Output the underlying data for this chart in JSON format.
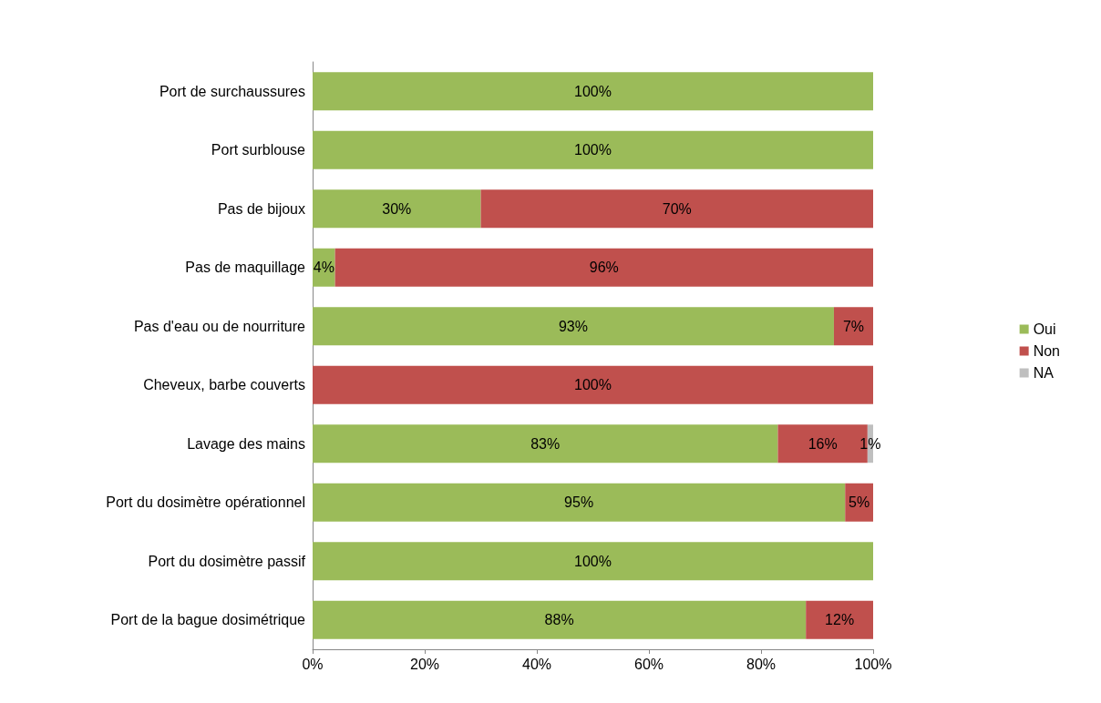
{
  "chart_data": {
    "type": "bar",
    "orientation": "horizontal",
    "stacked": true,
    "categories": [
      "Port de surchaussures",
      "Port surblouse",
      "Pas de bijoux",
      "Pas de maquillage",
      "Pas d'eau ou de nourriture",
      "Cheveux, barbe couverts",
      "Lavage des mains",
      "Port du dosimètre opérationnel",
      "Port du dosimètre passif",
      "Port de la bague dosimétrique"
    ],
    "series": [
      {
        "name": "Oui",
        "color": "#9bbb59",
        "values": [
          100,
          100,
          30,
          4,
          93,
          null,
          83,
          95,
          100,
          88
        ],
        "value_labels": [
          "100%",
          "100%",
          "30%",
          "4%",
          "93%",
          null,
          "83%",
          "95%",
          "100%",
          "88%"
        ]
      },
      {
        "name": "Non",
        "color": "#c0504d",
        "values": [
          null,
          null,
          70,
          96,
          7,
          100,
          16,
          5,
          null,
          12
        ],
        "value_labels": [
          null,
          null,
          "70%",
          "96%",
          "7%",
          "100%",
          "16%",
          "5%",
          null,
          "12%"
        ]
      },
      {
        "name": "NA",
        "color": "#bfbfbf",
        "values": [
          null,
          null,
          null,
          null,
          null,
          null,
          1,
          null,
          null,
          null
        ],
        "value_labels": [
          null,
          null,
          null,
          null,
          null,
          null,
          "1%",
          null,
          null,
          null
        ]
      }
    ],
    "xlim": [
      0,
      100
    ],
    "xticks": [
      {
        "value": 0,
        "label": "0%"
      },
      {
        "value": 20,
        "label": "20%"
      },
      {
        "value": 40,
        "label": "40%"
      },
      {
        "value": 60,
        "label": "60%"
      },
      {
        "value": 80,
        "label": "80%"
      },
      {
        "value": 100,
        "label": "100%"
      }
    ],
    "grid": false,
    "legend": "right"
  }
}
